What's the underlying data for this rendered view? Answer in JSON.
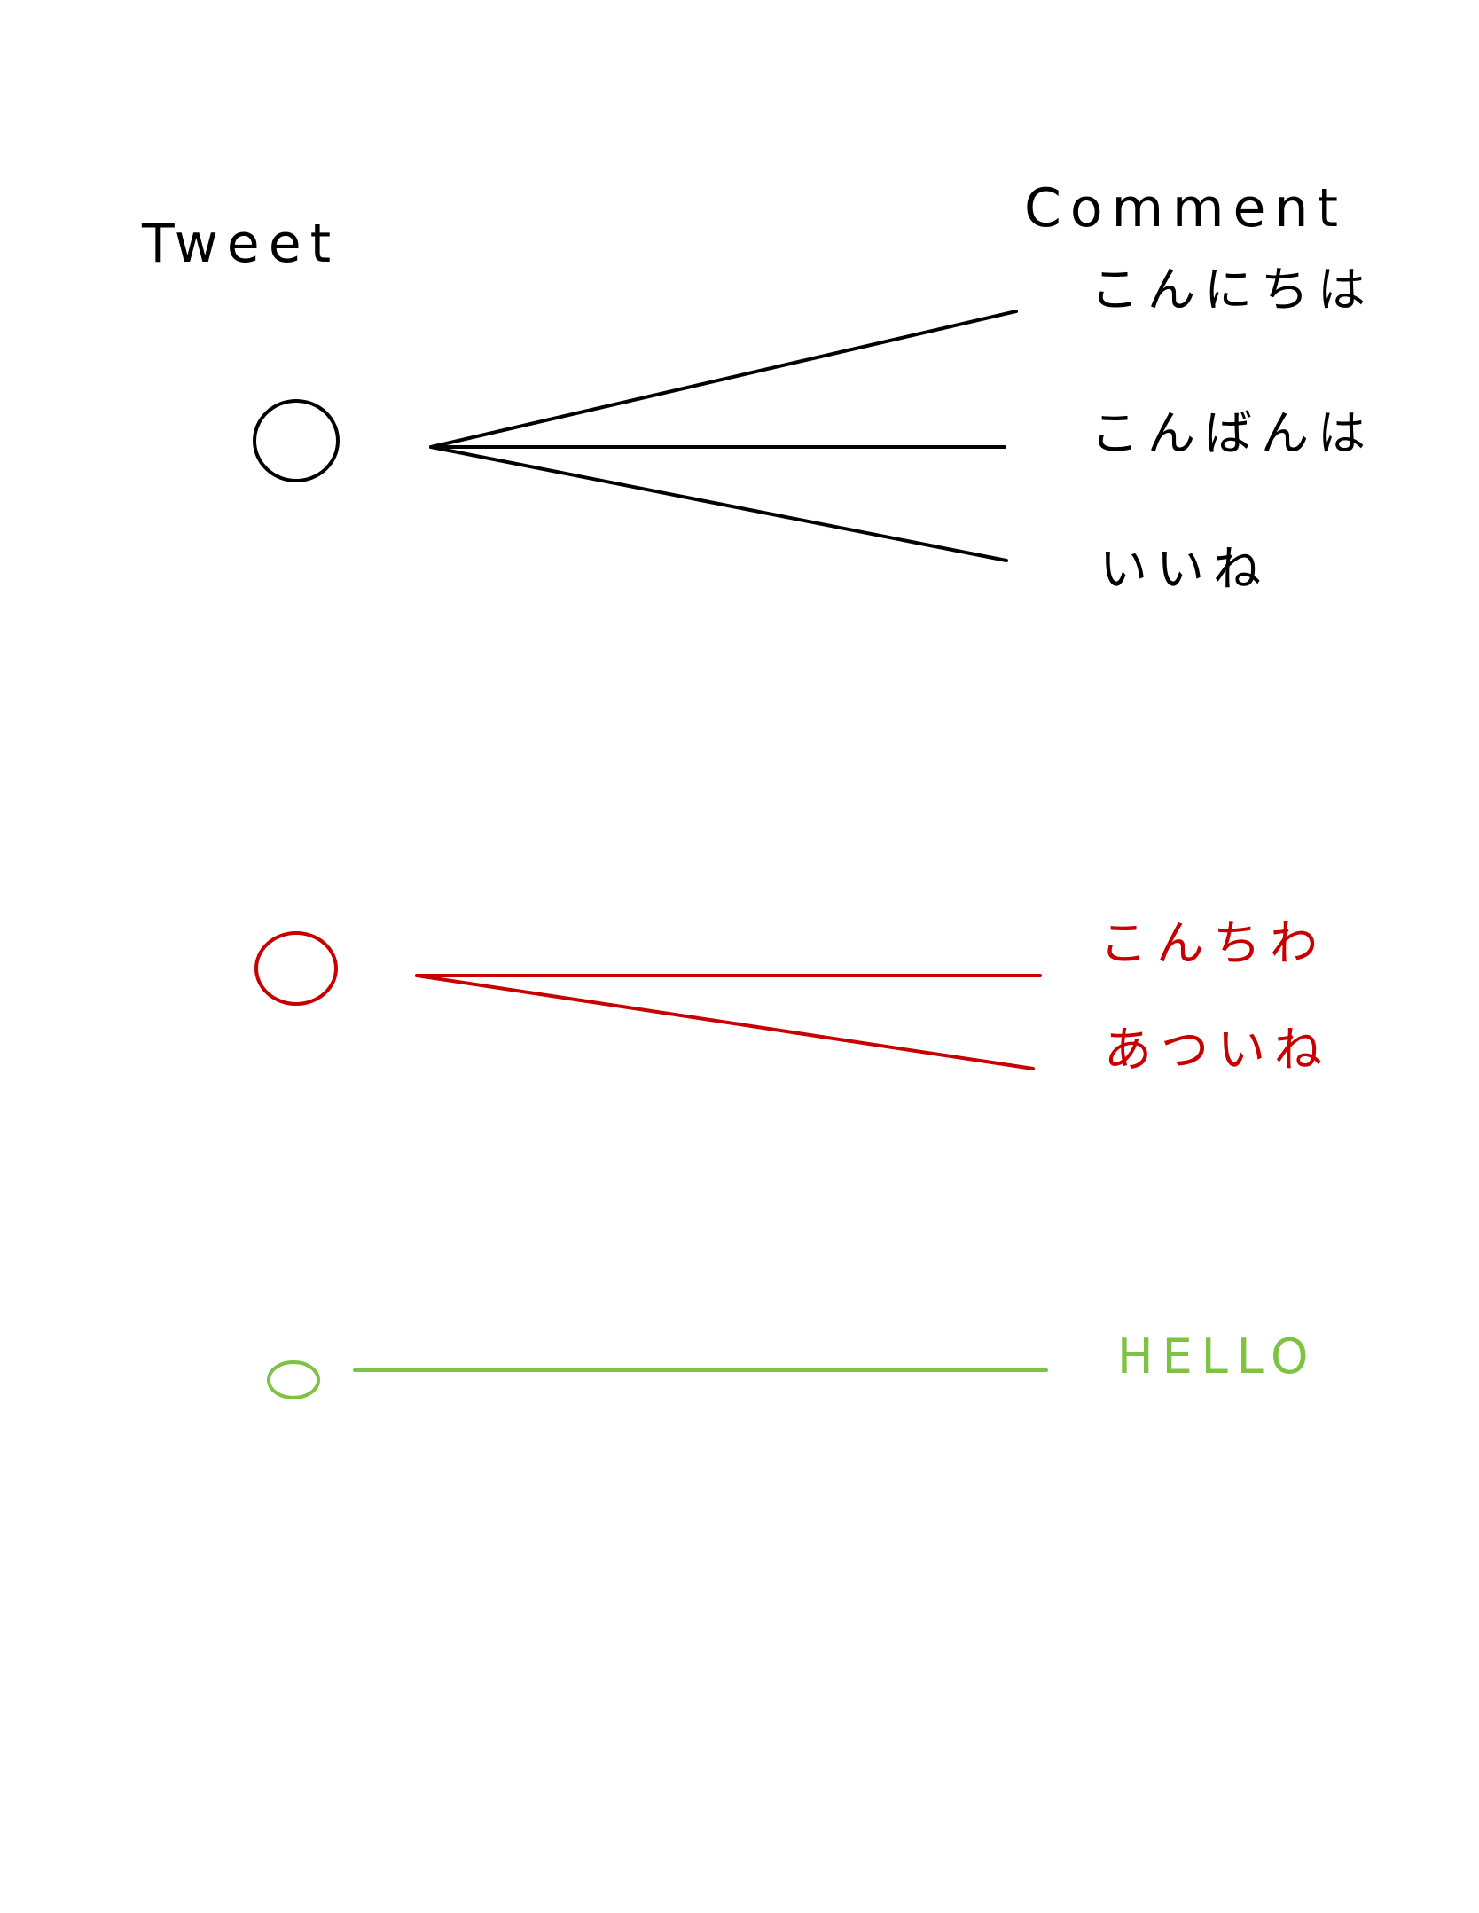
{
  "headers": {
    "tweet": "Tweet",
    "comment": "Comment"
  },
  "groups": [
    {
      "color": "#000000",
      "comments": [
        "こんにちは",
        "こんばんは",
        "いいね"
      ]
    },
    {
      "color": "#c80000",
      "comments": [
        "こんちわ",
        "あついね"
      ]
    },
    {
      "color": "#7dc242",
      "comments": [
        "HELLO"
      ]
    }
  ]
}
